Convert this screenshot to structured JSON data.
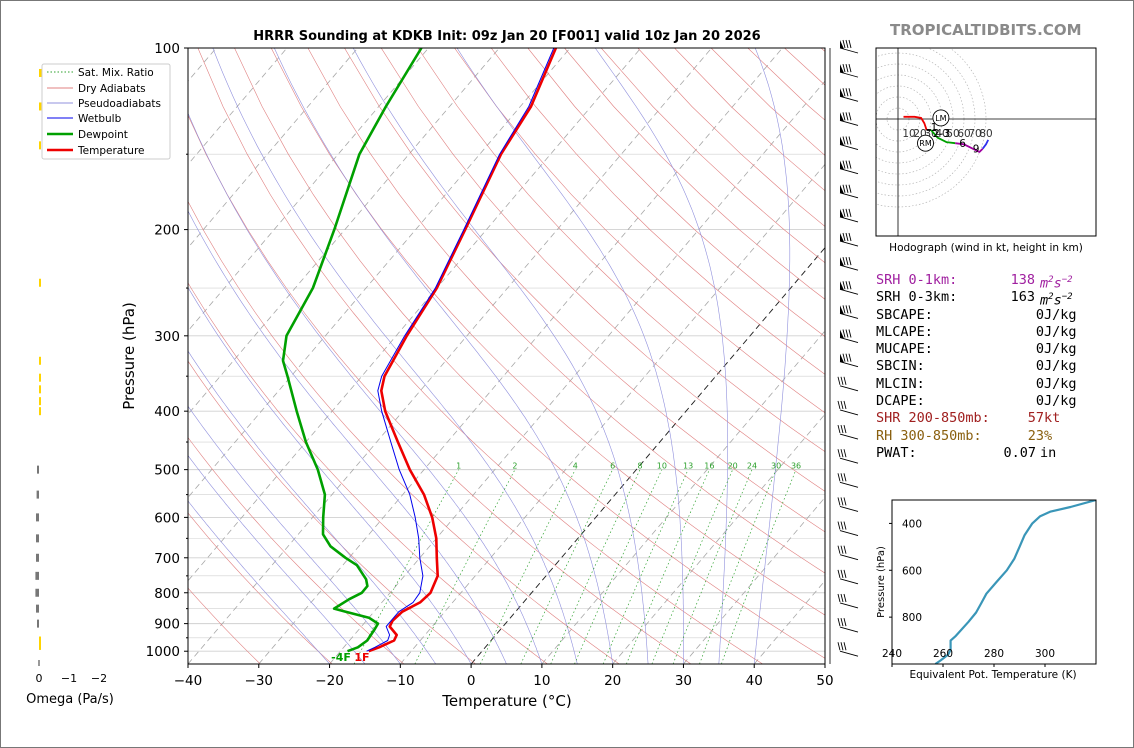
{
  "site": "TROPICALTIDBITS.COM",
  "chart_data": [
    {
      "type": "line",
      "subtype": "skew-t",
      "title": "HRRR Sounding at KDKB Init: 09z Jan 20 [F001] valid 10z Jan 20 2026",
      "xlabel": "Temperature (°C)",
      "ylabel": "Pressure (hPa)",
      "xlim": [
        -40,
        50
      ],
      "ylim": [
        1050,
        100
      ],
      "y_scale": "log",
      "x_ticks": [
        -40,
        -30,
        -20,
        -10,
        0,
        10,
        20,
        30,
        40,
        50
      ],
      "y_ticks": [
        100,
        200,
        300,
        400,
        500,
        600,
        700,
        800,
        900,
        1000
      ],
      "x_tick_labels": [
        "−40",
        "−30",
        "−20",
        "−10",
        "0",
        "10",
        "20",
        "30",
        "40",
        "50"
      ],
      "y_tick_labels": [
        "100",
        "200",
        "300",
        "400",
        "500",
        "600",
        "700",
        "800",
        "900",
        "1000"
      ],
      "legend": [
        {
          "name": "Sat. Mix. Ratio",
          "color": "#2ca02c",
          "style": "dotted"
        },
        {
          "name": "Dry Adiabats",
          "color": "#e08080",
          "style": "solid"
        },
        {
          "name": "Pseudoadiabats",
          "color": "#9090dd",
          "style": "solid"
        },
        {
          "name": "Wetbulb",
          "color": "#0000ee",
          "style": "solid"
        },
        {
          "name": "Dewpoint",
          "color": "#00a000",
          "style": "solid"
        },
        {
          "name": "Temperature",
          "color": "#ee0000",
          "style": "solid"
        }
      ],
      "legend_position": "top-left",
      "mixing_ratio_labels": [
        "1",
        "2",
        "4",
        "6",
        "8",
        "10",
        "13",
        "16",
        "20",
        "24",
        "30",
        "36"
      ],
      "mixing_ratio_values": [
        1,
        2,
        4,
        6,
        8,
        10,
        13,
        16,
        20,
        24,
        30,
        36
      ],
      "surface_labels": {
        "dewpoint": "-4F",
        "temperature": "1F"
      },
      "series": [
        {
          "name": "Temperature",
          "color": "#ee0000",
          "points": [
            [
              1000,
              -16.0
            ],
            [
              985,
              -15.0
            ],
            [
              960,
              -13.7
            ],
            [
              940,
              -14.0
            ],
            [
              910,
              -16.0
            ],
            [
              890,
              -16.3
            ],
            [
              860,
              -16.0
            ],
            [
              830,
              -14.6
            ],
            [
              800,
              -14.3
            ],
            [
              750,
              -15.3
            ],
            [
              700,
              -17.6
            ],
            [
              650,
              -20.0
            ],
            [
              600,
              -23.1
            ],
            [
              550,
              -27.0
            ],
            [
              500,
              -32.0
            ],
            [
              450,
              -37.0
            ],
            [
              400,
              -42.5
            ],
            [
              370,
              -45.5
            ],
            [
              350,
              -46.8
            ],
            [
              300,
              -48.5
            ],
            [
              250,
              -50.0
            ],
            [
              200,
              -53.0
            ],
            [
              150,
              -57.0
            ],
            [
              125,
              -58.5
            ],
            [
              100,
              -62.0
            ]
          ]
        },
        {
          "name": "Dewpoint",
          "color": "#00a000",
          "points": [
            [
              1000,
              -19.0
            ],
            [
              985,
              -18.0
            ],
            [
              960,
              -17.5
            ],
            [
              920,
              -17.8
            ],
            [
              900,
              -18.0
            ],
            [
              880,
              -20.0
            ],
            [
              860,
              -24.0
            ],
            [
              850,
              -26.0
            ],
            [
              820,
              -25.0
            ],
            [
              800,
              -24.0
            ],
            [
              780,
              -24.0
            ],
            [
              760,
              -25.0
            ],
            [
              720,
              -28.0
            ],
            [
              700,
              -30.5
            ],
            [
              670,
              -34.0
            ],
            [
              640,
              -36.5
            ],
            [
              600,
              -38.5
            ],
            [
              550,
              -41.0
            ],
            [
              500,
              -45.0
            ],
            [
              450,
              -50.0
            ],
            [
              400,
              -55.0
            ],
            [
              350,
              -60.5
            ],
            [
              330,
              -63.0
            ],
            [
              300,
              -65.5
            ],
            [
              250,
              -67.5
            ],
            [
              200,
              -71.5
            ],
            [
              150,
              -77.0
            ],
            [
              125,
              -79.0
            ],
            [
              100,
              -81.0
            ]
          ]
        },
        {
          "name": "Wetbulb",
          "color": "#0000ee",
          "points": [
            [
              1000,
              -16.3
            ],
            [
              985,
              -15.6
            ],
            [
              960,
              -14.6
            ],
            [
              940,
              -15.0
            ],
            [
              910,
              -16.5
            ],
            [
              890,
              -16.5
            ],
            [
              860,
              -16.5
            ],
            [
              830,
              -15.6
            ],
            [
              800,
              -15.8
            ],
            [
              750,
              -17.4
            ],
            [
              700,
              -20.0
            ],
            [
              650,
              -22.5
            ],
            [
              600,
              -25.5
            ],
            [
              550,
              -29.0
            ],
            [
              500,
              -33.5
            ],
            [
              450,
              -38.0
            ],
            [
              400,
              -43.0
            ],
            [
              370,
              -46.0
            ],
            [
              350,
              -47.2
            ],
            [
              300,
              -48.8
            ],
            [
              250,
              -50.2
            ],
            [
              200,
              -53.2
            ],
            [
              150,
              -57.2
            ],
            [
              125,
              -58.8
            ],
            [
              100,
              -62.3
            ]
          ]
        }
      ]
    },
    {
      "type": "line",
      "subtype": "hodograph",
      "title": "Hodograph (wind in kt, height in km)",
      "ring_labels": [
        "10",
        "20",
        "30",
        "40",
        "50",
        "60",
        "70",
        "80"
      ],
      "ring_values": [
        10,
        20,
        30,
        40,
        50,
        60,
        70,
        80
      ],
      "point_labels": [
        "1",
        "2-3",
        "6",
        "9"
      ],
      "storm_motion_labels": [
        "LM",
        "RM"
      ],
      "storm_motion": {
        "LM": [
          39,
          1
        ],
        "RM": [
          25,
          -22
        ]
      },
      "segments": [
        {
          "color": "#ee0000",
          "points": [
            [
              5,
              2
            ],
            [
              15,
              2
            ],
            [
              21,
              1
            ],
            [
              24,
              -4
            ],
            [
              26,
              -10
            ]
          ]
        },
        {
          "color": "#000000",
          "points": [
            [
              26,
              -10
            ],
            [
              30,
              -10
            ]
          ]
        },
        {
          "color": "#00a000",
          "points": [
            [
              30,
              -10
            ],
            [
              36,
              -17
            ],
            [
              44,
              -21
            ],
            [
              52,
              -22
            ]
          ]
        },
        {
          "color": "#a000a0",
          "points": [
            [
              52,
              -22
            ],
            [
              60,
              -23
            ],
            [
              68,
              -27
            ],
            [
              74,
              -30
            ],
            [
              77,
              -27
            ]
          ]
        },
        {
          "color": "#3030ee",
          "points": [
            [
              77,
              -27
            ],
            [
              80,
              -23
            ],
            [
              82,
              -19
            ]
          ]
        }
      ]
    },
    {
      "type": "line",
      "subtype": "theta-e profile",
      "xlabel": "Equivalent Pot. Temperature (K)",
      "ylabel": "Pressure (hPa)",
      "xlim": [
        240,
        320
      ],
      "ylim": [
        1000,
        300
      ],
      "x_ticks": [
        240,
        260,
        280,
        300
      ],
      "y_ticks": [
        400,
        600,
        800
      ],
      "x_tick_labels": [
        "240",
        "260",
        "280",
        "300"
      ],
      "y_tick_labels": [
        "400",
        "600",
        "800"
      ],
      "series": [
        {
          "name": "Equivalent Pot. Temperature",
          "color": "#3a96b8",
          "points": [
            [
              1000,
              257
            ],
            [
              985,
              259
            ],
            [
              960,
              262
            ],
            [
              940,
              263
            ],
            [
              900,
              263
            ],
            [
              880,
              265
            ],
            [
              820,
              270
            ],
            [
              780,
              273
            ],
            [
              740,
              275
            ],
            [
              700,
              277
            ],
            [
              650,
              281
            ],
            [
              600,
              285
            ],
            [
              550,
              288
            ],
            [
              500,
              290
            ],
            [
              450,
              292
            ],
            [
              400,
              295
            ],
            [
              370,
              298
            ],
            [
              350,
              302
            ],
            [
              330,
              310
            ],
            [
              300,
              320
            ]
          ]
        }
      ]
    },
    {
      "type": "bar",
      "subtype": "omega profile",
      "xlabel": "Omega (Pa/s)",
      "x_ticks": [
        0,
        -1,
        -2
      ],
      "x_tick_labels": [
        "0",
        "−1",
        "−2"
      ],
      "series": [
        {
          "name": "Omega",
          "points": [
            [
              110,
              -0.05
            ],
            [
              125,
              -0.04
            ],
            [
              145,
              -0.03
            ],
            [
              245,
              -0.02
            ],
            [
              330,
              -0.02
            ],
            [
              352,
              -0.02
            ],
            [
              368,
              -0.02
            ],
            [
              385,
              -0.02
            ],
            [
              400,
              -0.02
            ],
            [
              500,
              0.03
            ],
            [
              550,
              0.04
            ],
            [
              600,
              0.05
            ],
            [
              650,
              0.05
            ],
            [
              700,
              0.05
            ],
            [
              750,
              0.06
            ],
            [
              800,
              0.06
            ],
            [
              850,
              0.05
            ],
            [
              900,
              0.03
            ],
            [
              960,
              -0.02
            ],
            [
              980,
              -0.02
            ]
          ]
        }
      ]
    }
  ],
  "wind_barb_count": 26,
  "parameters": [
    {
      "label": "SRH 0-1km:",
      "value": "138",
      "unit": "m²s⁻²",
      "color": "#a020a0"
    },
    {
      "label": "SRH 0-3km:",
      "value": "163",
      "unit": "m²s⁻²",
      "color": "#000000"
    },
    {
      "label": "SBCAPE:",
      "value": "0",
      "unit": "J/kg",
      "color": "#000000"
    },
    {
      "label": "MLCAPE:",
      "value": "0",
      "unit": "J/kg",
      "color": "#000000"
    },
    {
      "label": "MUCAPE:",
      "value": "0",
      "unit": "J/kg",
      "color": "#000000"
    },
    {
      "label": "SBCIN:",
      "value": "0",
      "unit": "J/kg",
      "color": "#000000"
    },
    {
      "label": "MLCIN:",
      "value": "0",
      "unit": "J/kg",
      "color": "#000000"
    },
    {
      "label": "DCAPE:",
      "value": "0",
      "unit": "J/kg",
      "color": "#000000"
    },
    {
      "label": "SHR 200-850mb:",
      "value": "57",
      "unit": "kt",
      "color": "#a02020"
    },
    {
      "label": "RH 300-850mb:",
      "value": "23",
      "unit": "%",
      "color": "#8a6010"
    },
    {
      "label": "PWAT:",
      "value": "0.07",
      "unit": "in",
      "color": "#000000"
    }
  ]
}
